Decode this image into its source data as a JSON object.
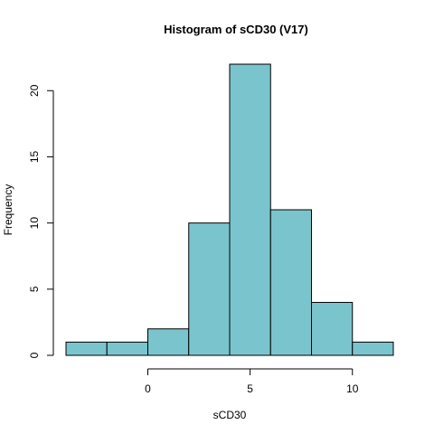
{
  "chart_data": {
    "type": "bar",
    "title": "Histogram of sCD30 (V17)",
    "xlabel": "sCD30",
    "ylabel": "Frequency",
    "bins": [
      {
        "from": -4,
        "to": -2,
        "count": 1
      },
      {
        "from": -2,
        "to": 0,
        "count": 1
      },
      {
        "from": 0,
        "to": 2,
        "count": 2
      },
      {
        "from": 2,
        "to": 4,
        "count": 10
      },
      {
        "from": 4,
        "to": 6,
        "count": 22
      },
      {
        "from": 6,
        "to": 8,
        "count": 11
      },
      {
        "from": 8,
        "to": 10,
        "count": 4
      },
      {
        "from": 10,
        "to": 12,
        "count": 1
      }
    ],
    "xticks": [
      0,
      5,
      10
    ],
    "yticks": [
      0,
      5,
      10,
      15,
      20
    ],
    "xlim": [
      -4,
      12
    ],
    "ylim": [
      0,
      22
    ],
    "bar_color": "#7AC5CD",
    "grid": false
  }
}
